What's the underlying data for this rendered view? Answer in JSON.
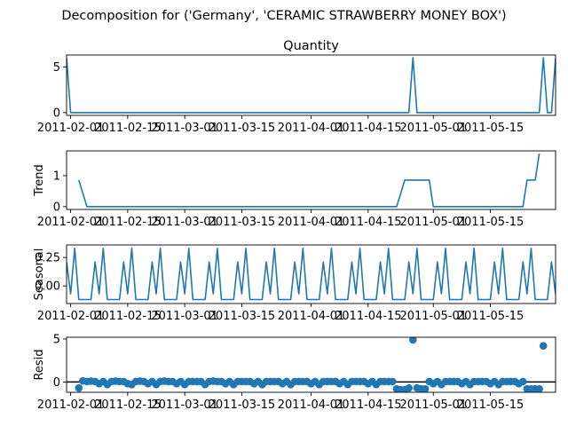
{
  "figure": {
    "suptitle": "Decomposition for ('Germany', 'CERAMIC STRAWBERRY MONEY BOX')"
  },
  "chart_data": [
    {
      "type": "line",
      "title": "Quantity",
      "ylabel": "",
      "x_start": "2011-01-31",
      "x_end": "2011-05-31",
      "xticks": [
        "2011-02-01",
        "2011-02-15",
        "2011-03-01",
        "2011-03-15",
        "2011-04-01",
        "2011-04-15",
        "2011-05-01",
        "2011-05-15"
      ],
      "ylim": [
        -0.3,
        6.3
      ],
      "yticks": [
        0,
        5
      ],
      "ytick_labels": [
        "0",
        "5"
      ],
      "points": [
        [
          "2011-01-31",
          6
        ],
        [
          "2011-02-01",
          0
        ],
        [
          "2011-04-25",
          0
        ],
        [
          "2011-04-26",
          6
        ],
        [
          "2011-04-27",
          0
        ],
        [
          "2011-05-27",
          0
        ],
        [
          "2011-05-28",
          6
        ],
        [
          "2011-05-29",
          0
        ],
        [
          "2011-05-30",
          0
        ],
        [
          "2011-05-31",
          6
        ]
      ],
      "color": "#1f77b4"
    },
    {
      "type": "line",
      "title": "",
      "ylabel": "Trend",
      "x_start": "2011-01-31",
      "x_end": "2011-05-31",
      "xticks": [
        "2011-02-01",
        "2011-02-15",
        "2011-03-01",
        "2011-03-15",
        "2011-04-01",
        "2011-04-15",
        "2011-05-01",
        "2011-05-15"
      ],
      "ylim": [
        -0.09,
        1.8
      ],
      "yticks": [
        0,
        1
      ],
      "ytick_labels": [
        "0",
        "1"
      ],
      "points": [
        [
          "2011-02-03",
          0.857
        ],
        [
          "2011-02-05",
          0
        ],
        [
          "2011-04-22",
          0
        ],
        [
          "2011-04-24",
          0.857
        ],
        [
          "2011-04-30",
          0.857
        ],
        [
          "2011-05-01",
          0
        ],
        [
          "2011-05-23",
          0
        ],
        [
          "2011-05-24",
          0.857
        ],
        [
          "2011-05-26",
          0.857
        ],
        [
          "2011-05-27",
          1.714
        ]
      ],
      "color": "#1f77b4"
    },
    {
      "type": "line",
      "title": "",
      "ylabel": "Seasonal",
      "x_start": "2011-01-31",
      "x_end": "2011-05-31",
      "xticks": [
        "2011-02-01",
        "2011-02-15",
        "2011-03-01",
        "2011-03-15",
        "2011-04-01",
        "2011-04-15",
        "2011-05-01",
        "2011-05-15"
      ],
      "ylim": [
        -0.155,
        0.36
      ],
      "yticks": [
        0,
        0.25
      ],
      "ytick_labels": [
        "0.00",
        "0.25"
      ],
      "period": 7,
      "pattern": [
        0.21,
        -0.07,
        0.33,
        -0.12,
        -0.12,
        -0.12,
        -0.12
      ],
      "color": "#1f77b4"
    },
    {
      "type": "scatter",
      "title": "",
      "ylabel": "Resid",
      "x_start": "2011-01-31",
      "x_end": "2011-05-31",
      "xticks": [
        "2011-02-01",
        "2011-02-15",
        "2011-03-01",
        "2011-03-15",
        "2011-04-01",
        "2011-04-15",
        "2011-05-01",
        "2011-05-15"
      ],
      "ylim": [
        -1.2,
        5.2
      ],
      "yticks": [
        0,
        5
      ],
      "ytick_labels": [
        "0",
        "5"
      ],
      "baseline": 0,
      "default_value": 0.05,
      "values_by_date": {
        "2011-02-03": -0.7,
        "2011-02-04": 0.12,
        "2011-02-06": 0.1,
        "2011-02-08": -0.2,
        "2011-02-09": 0.05,
        "2011-02-10": -0.3,
        "2011-02-12": 0.1,
        "2011-02-15": -0.2,
        "2011-02-16": -0.3,
        "2011-02-18": 0.1,
        "2011-02-20": -0.2,
        "2011-02-22": -0.3,
        "2011-02-24": 0.1,
        "2011-02-27": -0.2,
        "2011-03-01": -0.3,
        "2011-03-06": -0.3,
        "2011-03-08": 0.1,
        "2011-03-11": -0.2,
        "2011-03-13": -0.3,
        "2011-03-18": -0.2,
        "2011-03-20": -0.3,
        "2011-03-25": -0.2,
        "2011-03-27": -0.3,
        "2011-04-01": -0.2,
        "2011-04-03": -0.3,
        "2011-04-08": -0.2,
        "2011-04-10": -0.3,
        "2011-04-15": -0.2,
        "2011-04-17": -0.3,
        "2011-04-22": -0.8,
        "2011-04-23": -0.9,
        "2011-04-24": -0.9,
        "2011-04-25": -0.7,
        "2011-04-26": 4.9,
        "2011-04-27": -0.7,
        "2011-04-28": -0.8,
        "2011-04-29": -0.8,
        "2011-04-30": 0.05,
        "2011-05-01": -0.2,
        "2011-05-03": -0.3,
        "2011-05-08": -0.2,
        "2011-05-10": -0.3,
        "2011-05-15": -0.2,
        "2011-05-17": -0.3,
        "2011-05-22": -0.2,
        "2011-05-24": -0.8,
        "2011-05-25": -0.8,
        "2011-05-26": -0.8,
        "2011-05-27": -0.8,
        "2011-05-28": 4.2
      },
      "color": "#1f77b4"
    }
  ]
}
